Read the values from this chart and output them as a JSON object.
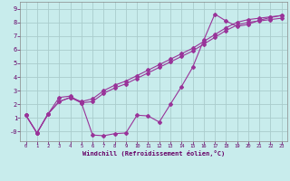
{
  "xlabel": "Windchill (Refroidissement éolien,°C)",
  "bg_color": "#c8ecec",
  "grid_color": "#aacccc",
  "line_color": "#993399",
  "xlim": [
    -0.5,
    23.5
  ],
  "ylim": [
    -0.7,
    9.5
  ],
  "yticks": [
    0,
    1,
    2,
    3,
    4,
    5,
    6,
    7,
    8,
    9
  ],
  "ytick_labels": [
    "-0",
    "1",
    "2",
    "3",
    "4",
    "5",
    "6",
    "7",
    "8",
    "9"
  ],
  "xticks": [
    0,
    1,
    2,
    3,
    4,
    5,
    6,
    7,
    8,
    9,
    10,
    11,
    12,
    13,
    14,
    15,
    16,
    17,
    18,
    19,
    20,
    21,
    22,
    23
  ],
  "line1_x": [
    0,
    1,
    2,
    3,
    4,
    5,
    6,
    7,
    8,
    9,
    10,
    11,
    12,
    13,
    14,
    15,
    16,
    17,
    18,
    19,
    20,
    21,
    22,
    23
  ],
  "line1_y": [
    1.2,
    -0.1,
    1.3,
    2.2,
    2.5,
    2.2,
    2.4,
    3.0,
    3.4,
    3.7,
    4.1,
    4.5,
    4.9,
    5.3,
    5.7,
    6.1,
    6.6,
    7.1,
    7.6,
    8.0,
    8.2,
    8.3,
    8.4,
    8.5
  ],
  "line2_x": [
    0,
    1,
    2,
    3,
    4,
    5,
    6,
    7,
    8,
    9,
    10,
    11,
    12,
    13,
    14,
    15,
    16,
    17,
    18,
    19,
    20,
    21,
    22,
    23
  ],
  "line2_y": [
    1.2,
    -0.1,
    1.3,
    2.5,
    2.6,
    2.1,
    -0.25,
    -0.3,
    -0.15,
    -0.1,
    1.2,
    1.15,
    0.7,
    2.0,
    3.3,
    4.7,
    6.7,
    8.6,
    8.1,
    7.7,
    7.85,
    8.15,
    8.35,
    8.5
  ],
  "line3_x": [
    0,
    1,
    2,
    3,
    4,
    5,
    6,
    7,
    8,
    9,
    10,
    11,
    12,
    13,
    14,
    15,
    16,
    17,
    18,
    19,
    20,
    21,
    22,
    23
  ],
  "line3_y": [
    1.2,
    -0.1,
    1.3,
    2.2,
    2.5,
    2.1,
    2.2,
    2.8,
    3.2,
    3.5,
    3.9,
    4.3,
    4.7,
    5.1,
    5.5,
    5.9,
    6.4,
    6.9,
    7.4,
    7.8,
    8.0,
    8.1,
    8.2,
    8.3
  ]
}
